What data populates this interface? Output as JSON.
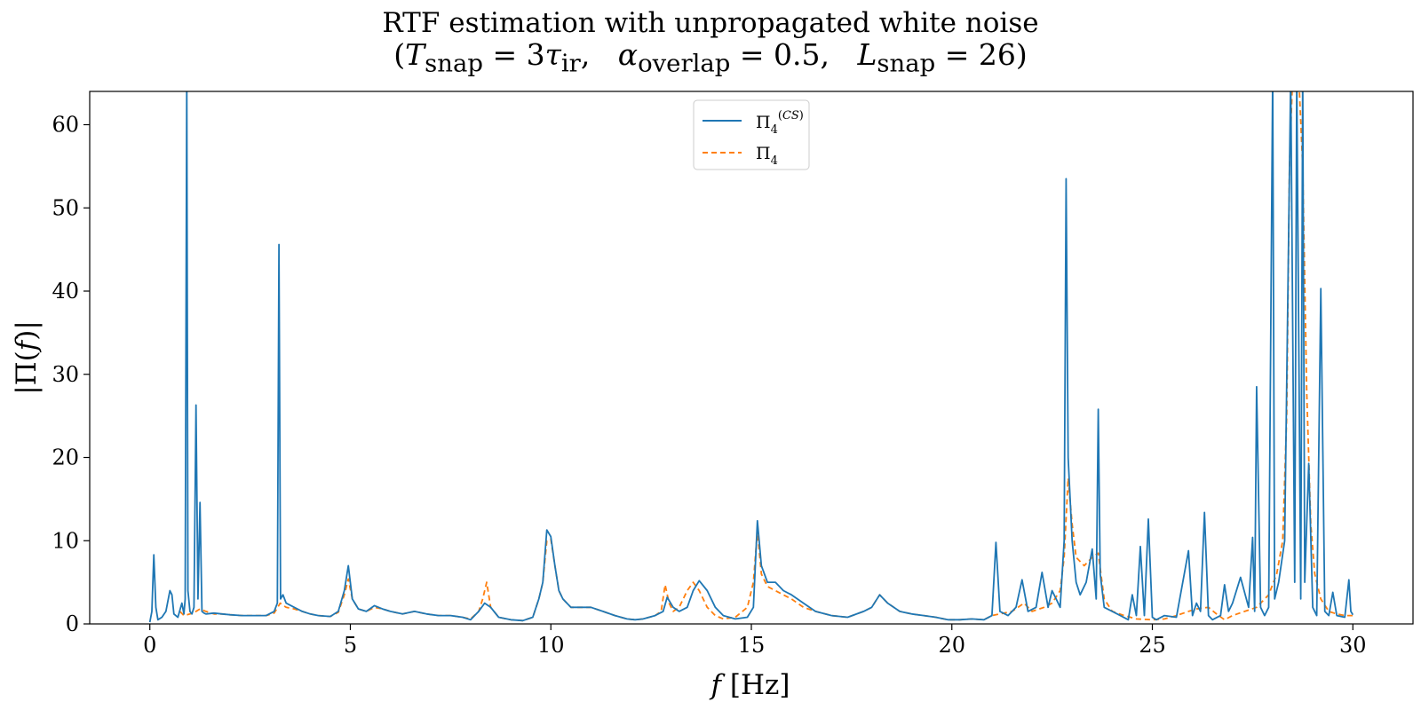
{
  "chart_data": {
    "type": "line",
    "title": "RTF estimation with unpropagated white noise",
    "subtitle": "(T_snap = 3τ_ir,   α_overlap = 0.5,   L_snap = 26)",
    "xlabel": "f [Hz]",
    "ylabel": "|Π(f)|",
    "xlim": [
      -1.5,
      31.5
    ],
    "ylim": [
      0,
      64
    ],
    "xticks": [
      0,
      5,
      10,
      15,
      20,
      25,
      30
    ],
    "yticks": [
      0,
      10,
      20,
      30,
      40,
      50,
      60
    ],
    "grid": false,
    "legend_position": "upper-center",
    "series": [
      {
        "name": "Π4(CS)",
        "color": "#1f77b4",
        "style": "solid",
        "x": [
          0.0,
          0.05,
          0.1,
          0.15,
          0.2,
          0.3,
          0.4,
          0.5,
          0.55,
          0.6,
          0.7,
          0.8,
          0.85,
          0.88,
          0.92,
          0.95,
          1.0,
          1.05,
          1.1,
          1.15,
          1.2,
          1.25,
          1.3,
          1.35,
          1.4,
          1.6,
          1.8,
          2.0,
          2.3,
          2.6,
          2.9,
          3.1,
          3.18,
          3.22,
          3.26,
          3.32,
          3.4,
          3.6,
          3.8,
          4.0,
          4.2,
          4.5,
          4.7,
          4.85,
          4.95,
          5.05,
          5.2,
          5.4,
          5.6,
          5.8,
          6.0,
          6.3,
          6.6,
          6.9,
          7.2,
          7.5,
          7.8,
          8.0,
          8.2,
          8.35,
          8.5,
          8.7,
          9.0,
          9.3,
          9.55,
          9.7,
          9.8,
          9.9,
          10.0,
          10.1,
          10.2,
          10.3,
          10.5,
          10.8,
          11.0,
          11.3,
          11.6,
          11.9,
          12.1,
          12.3,
          12.6,
          12.8,
          12.9,
          13.05,
          13.2,
          13.4,
          13.55,
          13.7,
          13.9,
          14.1,
          14.3,
          14.6,
          14.9,
          15.05,
          15.15,
          15.25,
          15.4,
          15.6,
          15.8,
          16.0,
          16.3,
          16.6,
          17.0,
          17.4,
          17.8,
          18.0,
          18.2,
          18.4,
          18.7,
          19.0,
          19.3,
          19.6,
          19.9,
          20.2,
          20.5,
          20.8,
          21.0,
          21.1,
          21.2,
          21.4,
          21.6,
          21.75,
          21.9,
          22.1,
          22.25,
          22.4,
          22.5,
          22.6,
          22.7,
          22.8,
          22.85,
          22.9,
          23.0,
          23.1,
          23.2,
          23.35,
          23.5,
          23.6,
          23.65,
          23.7,
          23.8,
          24.0,
          24.2,
          24.4,
          24.5,
          24.6,
          24.7,
          24.8,
          24.9,
          25.0,
          25.1,
          25.3,
          25.6,
          25.9,
          26.0,
          26.1,
          26.2,
          26.3,
          26.4,
          26.5,
          26.7,
          26.8,
          26.9,
          27.0,
          27.2,
          27.4,
          27.5,
          27.55,
          27.6,
          27.7,
          27.8,
          27.9,
          28.0,
          28.05,
          28.15,
          28.3,
          28.45,
          28.55,
          28.6,
          28.7,
          28.75,
          28.8,
          28.9,
          29.0,
          29.1,
          29.2,
          29.3,
          29.4,
          29.5,
          29.6,
          29.8,
          29.9,
          29.95,
          30.0
        ],
        "y": [
          0.2,
          1.5,
          8.3,
          2.0,
          0.5,
          0.8,
          1.5,
          4.0,
          3.5,
          1.2,
          0.8,
          2.5,
          1.2,
          3.0,
          66.0,
          4.0,
          1.5,
          1.2,
          2.0,
          26.3,
          3.0,
          14.6,
          1.5,
          1.3,
          1.2,
          1.3,
          1.2,
          1.1,
          1.0,
          1.0,
          1.0,
          1.5,
          2.5,
          45.6,
          3.0,
          3.5,
          2.5,
          2.0,
          1.5,
          1.2,
          1.0,
          0.9,
          1.5,
          4.0,
          7.0,
          3.0,
          1.8,
          1.5,
          2.2,
          1.8,
          1.5,
          1.2,
          1.5,
          1.2,
          1.0,
          1.0,
          0.8,
          0.5,
          1.5,
          2.5,
          2.0,
          0.8,
          0.5,
          0.4,
          0.8,
          3.0,
          5.0,
          11.3,
          10.5,
          7.0,
          4.0,
          3.0,
          2.0,
          2.0,
          2.0,
          1.5,
          1.0,
          0.6,
          0.5,
          0.6,
          1.0,
          1.5,
          3.2,
          2.0,
          1.5,
          2.0,
          4.0,
          5.2,
          4.0,
          2.0,
          1.0,
          0.6,
          0.8,
          2.0,
          12.4,
          7.0,
          5.0,
          5.0,
          4.0,
          3.5,
          2.5,
          1.5,
          1.0,
          0.8,
          1.5,
          2.0,
          3.5,
          2.5,
          1.5,
          1.2,
          1.0,
          0.8,
          0.5,
          0.5,
          0.6,
          0.5,
          1.0,
          9.8,
          1.5,
          1.0,
          2.0,
          5.3,
          1.5,
          2.0,
          6.2,
          2.0,
          4.0,
          3.0,
          2.0,
          10.0,
          53.5,
          20.0,
          10.0,
          5.0,
          3.5,
          5.0,
          9.0,
          3.0,
          25.8,
          6.0,
          2.0,
          1.5,
          1.0,
          0.5,
          3.5,
          1.0,
          9.3,
          1.0,
          12.6,
          0.8,
          0.5,
          1.0,
          0.8,
          8.8,
          1.0,
          2.5,
          1.5,
          13.4,
          1.0,
          0.5,
          1.0,
          4.7,
          1.5,
          2.5,
          5.6,
          2.0,
          10.4,
          1.5,
          28.5,
          2.0,
          1.0,
          2.0,
          66.0,
          3.0,
          5.0,
          10.0,
          66.0,
          5.0,
          66.0,
          3.0,
          66.0,
          5.0,
          19.3,
          2.0,
          1.0,
          40.3,
          1.5,
          1.0,
          3.8,
          1.0,
          0.8,
          5.3,
          1.5,
          1.1
        ]
      },
      {
        "name": "Π4",
        "color": "#ff7f0e",
        "style": "dashed",
        "x": [
          0.75,
          0.85,
          1.0,
          1.15,
          1.25,
          1.4,
          1.6,
          1.8,
          2.0,
          2.3,
          2.6,
          2.9,
          3.1,
          3.25,
          3.4,
          3.6,
          3.8,
          4.0,
          4.2,
          4.5,
          4.7,
          4.85,
          4.95,
          5.05,
          5.2,
          5.4,
          5.6,
          5.8,
          6.0,
          6.3,
          6.6,
          6.9,
          7.2,
          7.5,
          7.8,
          8.0,
          8.2,
          8.3,
          8.4,
          8.5,
          8.7,
          9.0,
          9.3,
          9.55,
          9.7,
          9.8,
          9.9,
          10.0,
          10.1,
          10.2,
          10.3,
          10.5,
          10.8,
          11.0,
          11.3,
          11.6,
          11.9,
          12.1,
          12.3,
          12.6,
          12.75,
          12.85,
          12.95,
          13.05,
          13.2,
          13.4,
          13.55,
          13.7,
          13.9,
          14.1,
          14.3,
          14.6,
          14.9,
          15.05,
          15.15,
          15.25,
          15.4,
          15.6,
          15.8,
          16.0,
          16.3,
          16.6,
          17.0,
          17.4,
          17.8,
          18.0,
          18.2,
          18.4,
          18.7,
          19.0,
          19.3,
          19.6,
          19.9,
          20.2,
          20.5,
          20.8,
          21.0,
          21.5,
          21.8,
          22.0,
          22.3,
          22.5,
          22.7,
          22.8,
          22.9,
          23.0,
          23.1,
          23.3,
          23.5,
          23.65,
          23.8,
          24.0,
          24.3,
          24.6,
          25.0,
          25.3,
          25.6,
          25.9,
          26.1,
          26.4,
          26.6,
          26.8,
          27.0,
          27.3,
          27.6,
          27.9,
          28.1,
          28.25,
          28.35,
          28.42,
          28.5,
          28.55,
          28.65,
          28.75,
          28.85,
          28.95,
          29.05,
          29.2,
          29.4,
          29.6,
          29.8,
          30.0
        ],
        "y": [
          1.5,
          1.0,
          1.2,
          1.5,
          1.8,
          1.5,
          1.2,
          1.2,
          1.1,
          1.0,
          1.0,
          1.0,
          1.3,
          2.5,
          2.0,
          1.8,
          1.5,
          1.2,
          1.0,
          0.9,
          1.4,
          3.5,
          5.4,
          3.0,
          1.8,
          1.5,
          2.0,
          1.8,
          1.5,
          1.2,
          1.5,
          1.2,
          1.0,
          1.0,
          0.8,
          0.6,
          1.5,
          3.0,
          5.0,
          2.0,
          0.8,
          0.5,
          0.4,
          0.8,
          3.0,
          5.0,
          10.0,
          10.2,
          7.0,
          4.0,
          3.0,
          2.0,
          2.0,
          2.0,
          1.5,
          1.0,
          0.6,
          0.5,
          0.6,
          1.0,
          1.5,
          4.7,
          2.5,
          1.5,
          2.0,
          4.0,
          5.0,
          4.0,
          2.0,
          1.0,
          0.6,
          0.8,
          2.0,
          5.0,
          11.2,
          6.0,
          4.5,
          4.0,
          3.5,
          3.0,
          2.0,
          1.5,
          1.0,
          0.8,
          1.5,
          2.0,
          3.5,
          2.5,
          1.5,
          1.2,
          1.0,
          0.8,
          0.5,
          0.5,
          0.6,
          0.5,
          1.0,
          1.5,
          2.5,
          1.5,
          2.0,
          2.5,
          4.0,
          8.0,
          17.5,
          12.0,
          8.0,
          7.0,
          8.0,
          8.5,
          3.0,
          1.5,
          1.0,
          0.6,
          0.5,
          0.6,
          1.0,
          1.5,
          1.8,
          2.0,
          1.2,
          0.5,
          1.0,
          1.5,
          2.0,
          3.5,
          6.0,
          10.0,
          25.0,
          55.0,
          66.0,
          66.0,
          66.0,
          55.0,
          28.0,
          12.0,
          6.0,
          3.0,
          1.5,
          1.2,
          1.0,
          1.0
        ]
      }
    ]
  }
}
